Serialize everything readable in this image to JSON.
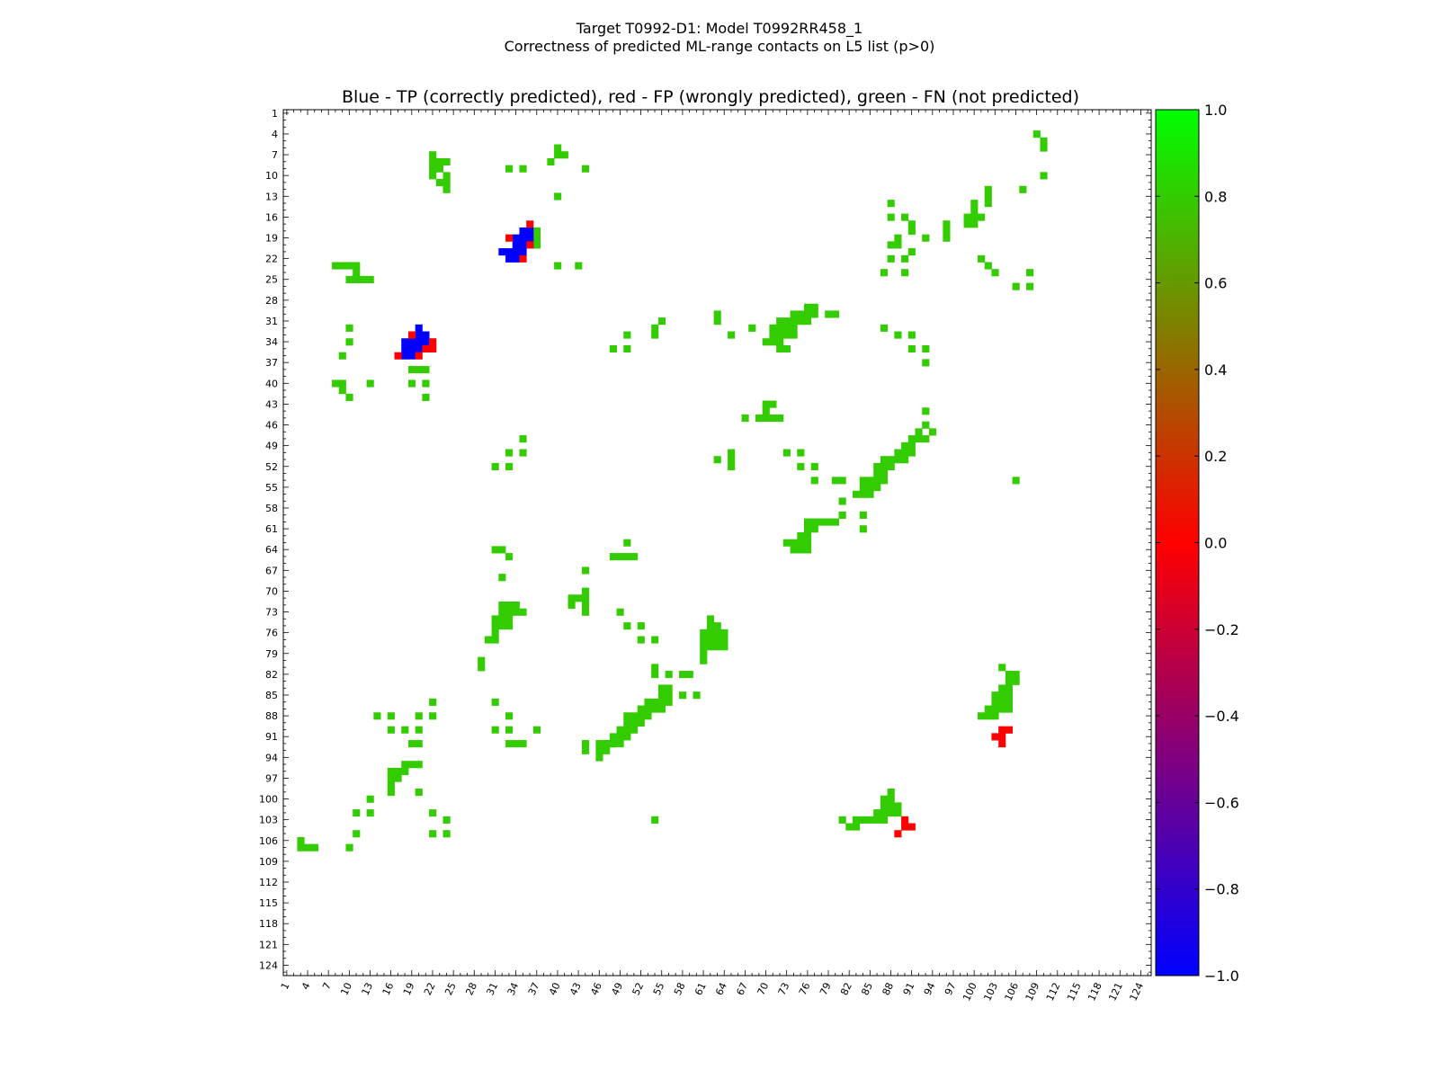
{
  "figure": {
    "title_line1": "Target T0992-D1: Model T0992RR458_1",
    "title_line2": "Correctness of predicted ML-range contacts on L5 list (p>0)"
  },
  "chart_data": {
    "type": "heatmap",
    "title": "Blue - TP (correctly predicted), red - FP (wrongly predicted), green - FN (not predicted)",
    "xlabel": "",
    "ylabel": "",
    "x_range": [
      1,
      125
    ],
    "y_range": [
      1,
      125
    ],
    "y_inverted": true,
    "tick_labels": [
      1,
      4,
      7,
      10,
      13,
      16,
      19,
      22,
      25,
      28,
      31,
      34,
      37,
      40,
      43,
      46,
      49,
      52,
      55,
      58,
      61,
      64,
      67,
      70,
      73,
      76,
      79,
      82,
      85,
      88,
      91,
      94,
      97,
      100,
      103,
      106,
      109,
      112,
      115,
      118,
      121,
      124
    ],
    "grid": false,
    "colorbar": {
      "range": [
        -1.0,
        1.0
      ],
      "ticks": [
        "1.0",
        "0.8",
        "0.6",
        "0.4",
        "0.2",
        "0.0",
        "−0.2",
        "−0.4",
        "−0.6",
        "−0.8",
        "−1.0"
      ],
      "colors": [
        "#0000ff",
        "#ff0000",
        "#00ff00"
      ],
      "position": "right"
    },
    "cell_classes": {
      "FN": {
        "value": 0.8,
        "color": "#33cc00"
      },
      "TP": {
        "value": -1.0,
        "color": "#0000ff"
      },
      "FP": {
        "value": 0.0,
        "color": "#ff0000"
      }
    },
    "FN_runs": [
      [
        4,
        109,
        109
      ],
      [
        5,
        110,
        110
      ],
      [
        6,
        110,
        110
      ],
      [
        6,
        40,
        40
      ],
      [
        7,
        22,
        22
      ],
      [
        7,
        40,
        41
      ],
      [
        8,
        22,
        22
      ],
      [
        8,
        23,
        24
      ],
      [
        8,
        39,
        39
      ],
      [
        9,
        22,
        23
      ],
      [
        9,
        33,
        33
      ],
      [
        9,
        35,
        35
      ],
      [
        9,
        44,
        44
      ],
      [
        10,
        22,
        22
      ],
      [
        10,
        24,
        24
      ],
      [
        10,
        110,
        110
      ],
      [
        11,
        23,
        24
      ],
      [
        12,
        24,
        24
      ],
      [
        12,
        102,
        102
      ],
      [
        12,
        107,
        107
      ],
      [
        13,
        40,
        40
      ],
      [
        13,
        102,
        102
      ],
      [
        14,
        88,
        88
      ],
      [
        14,
        100,
        100
      ],
      [
        14,
        102,
        102
      ],
      [
        15,
        100,
        100
      ],
      [
        16,
        88,
        88
      ],
      [
        16,
        90,
        90
      ],
      [
        16,
        99,
        101
      ],
      [
        17,
        91,
        91
      ],
      [
        17,
        96,
        96
      ],
      [
        17,
        99,
        100
      ],
      [
        18,
        37,
        37
      ],
      [
        18,
        91,
        91
      ],
      [
        18,
        96,
        96
      ],
      [
        19,
        37,
        37
      ],
      [
        19,
        89,
        89
      ],
      [
        19,
        93,
        93
      ],
      [
        19,
        96,
        96
      ],
      [
        20,
        37,
        37
      ],
      [
        20,
        88,
        89
      ],
      [
        21,
        91,
        91
      ],
      [
        22,
        88,
        88
      ],
      [
        22,
        90,
        90
      ],
      [
        22,
        101,
        101
      ],
      [
        23,
        8,
        8
      ],
      [
        23,
        9,
        11
      ],
      [
        23,
        40,
        40
      ],
      [
        23,
        43,
        43
      ],
      [
        23,
        102,
        102
      ],
      [
        24,
        11,
        11
      ],
      [
        24,
        87,
        87
      ],
      [
        24,
        90,
        90
      ],
      [
        24,
        103,
        103
      ],
      [
        24,
        108,
        108
      ],
      [
        25,
        10,
        11
      ],
      [
        25,
        12,
        13
      ],
      [
        26,
        106,
        106
      ],
      [
        26,
        108,
        108
      ],
      [
        29,
        76,
        77
      ],
      [
        30,
        63,
        63
      ],
      [
        30,
        74,
        77
      ],
      [
        30,
        79,
        80
      ],
      [
        31,
        55,
        55
      ],
      [
        31,
        63,
        63
      ],
      [
        31,
        72,
        75
      ],
      [
        31,
        76,
        76
      ],
      [
        32,
        10,
        10
      ],
      [
        32,
        54,
        54
      ],
      [
        32,
        68,
        68
      ],
      [
        32,
        71,
        74
      ],
      [
        32,
        87,
        87
      ],
      [
        33,
        50,
        50
      ],
      [
        33,
        54,
        54
      ],
      [
        33,
        65,
        65
      ],
      [
        33,
        71,
        74
      ],
      [
        33,
        89,
        89
      ],
      [
        33,
        91,
        91
      ],
      [
        34,
        10,
        10
      ],
      [
        34,
        70,
        72
      ],
      [
        35,
        48,
        48
      ],
      [
        35,
        50,
        50
      ],
      [
        35,
        72,
        73
      ],
      [
        35,
        91,
        91
      ],
      [
        35,
        93,
        93
      ],
      [
        36,
        9,
        9
      ],
      [
        37,
        93,
        93
      ],
      [
        38,
        19,
        21
      ],
      [
        40,
        8,
        9
      ],
      [
        40,
        13,
        13
      ],
      [
        40,
        19,
        19
      ],
      [
        40,
        21,
        21
      ],
      [
        41,
        9,
        9
      ],
      [
        42,
        10,
        10
      ],
      [
        42,
        21,
        21
      ],
      [
        43,
        70,
        71
      ],
      [
        44,
        70,
        70
      ],
      [
        44,
        93,
        93
      ],
      [
        45,
        69,
        72
      ],
      [
        45,
        67,
        67
      ],
      [
        46,
        93,
        93
      ],
      [
        47,
        92,
        92
      ],
      [
        47,
        94,
        94
      ],
      [
        48,
        35,
        35
      ],
      [
        48,
        91,
        93
      ],
      [
        49,
        90,
        91
      ],
      [
        50,
        33,
        33
      ],
      [
        50,
        35,
        35
      ],
      [
        50,
        65,
        65
      ],
      [
        50,
        73,
        73
      ],
      [
        50,
        75,
        75
      ],
      [
        50,
        89,
        91
      ],
      [
        51,
        63,
        63
      ],
      [
        51,
        65,
        65
      ],
      [
        51,
        87,
        90
      ],
      [
        52,
        31,
        31
      ],
      [
        52,
        33,
        33
      ],
      [
        52,
        65,
        65
      ],
      [
        52,
        75,
        75
      ],
      [
        52,
        77,
        77
      ],
      [
        52,
        86,
        88
      ],
      [
        53,
        86,
        87
      ],
      [
        54,
        77,
        77
      ],
      [
        54,
        80,
        81
      ],
      [
        54,
        84,
        87
      ],
      [
        54,
        106,
        106
      ],
      [
        55,
        84,
        86
      ],
      [
        56,
        83,
        85
      ],
      [
        57,
        81,
        81
      ],
      [
        59,
        81,
        81
      ],
      [
        59,
        84,
        84
      ],
      [
        60,
        76,
        80
      ],
      [
        61,
        76,
        77
      ],
      [
        61,
        84,
        84
      ],
      [
        62,
        75,
        76
      ],
      [
        63,
        73,
        76
      ],
      [
        63,
        50,
        50
      ],
      [
        64,
        31,
        32
      ],
      [
        64,
        74,
        76
      ],
      [
        65,
        48,
        51
      ],
      [
        65,
        33,
        33
      ],
      [
        67,
        44,
        44
      ],
      [
        68,
        32,
        32
      ],
      [
        70,
        44,
        44
      ],
      [
        71,
        42,
        44
      ],
      [
        72,
        42,
        42
      ],
      [
        72,
        44,
        44
      ],
      [
        72,
        32,
        33
      ],
      [
        72,
        34,
        34
      ],
      [
        73,
        32,
        35
      ],
      [
        73,
        44,
        44
      ],
      [
        73,
        49,
        49
      ],
      [
        74,
        31,
        33
      ],
      [
        74,
        62,
        62
      ],
      [
        75,
        31,
        33
      ],
      [
        75,
        50,
        50
      ],
      [
        75,
        52,
        52
      ],
      [
        75,
        62,
        63
      ],
      [
        76,
        31,
        31
      ],
      [
        76,
        61,
        64
      ],
      [
        77,
        30,
        31
      ],
      [
        77,
        52,
        52
      ],
      [
        77,
        54,
        54
      ],
      [
        77,
        61,
        64
      ],
      [
        78,
        61,
        64
      ],
      [
        79,
        61,
        61
      ],
      [
        80,
        29,
        29
      ],
      [
        80,
        61,
        61
      ],
      [
        81,
        29,
        29
      ],
      [
        81,
        54,
        54
      ],
      [
        81,
        104,
        104
      ],
      [
        82,
        54,
        54
      ],
      [
        82,
        56,
        56
      ],
      [
        82,
        58,
        59
      ],
      [
        82,
        105,
        106
      ],
      [
        83,
        105,
        106
      ],
      [
        84,
        55,
        56
      ],
      [
        84,
        104,
        105
      ],
      [
        85,
        55,
        56
      ],
      [
        85,
        58,
        58
      ],
      [
        85,
        60,
        60
      ],
      [
        85,
        103,
        105
      ],
      [
        86,
        22,
        22
      ],
      [
        86,
        31,
        31
      ],
      [
        86,
        53,
        56
      ],
      [
        86,
        103,
        105
      ],
      [
        87,
        52,
        55
      ],
      [
        87,
        102,
        105
      ],
      [
        88,
        14,
        14
      ],
      [
        88,
        16,
        16
      ],
      [
        88,
        20,
        20
      ],
      [
        88,
        22,
        22
      ],
      [
        88,
        33,
        33
      ],
      [
        88,
        50,
        53
      ],
      [
        88,
        101,
        103
      ],
      [
        89,
        50,
        52
      ],
      [
        90,
        16,
        16
      ],
      [
        90,
        18,
        18
      ],
      [
        90,
        20,
        20
      ],
      [
        90,
        31,
        31
      ],
      [
        90,
        33,
        33
      ],
      [
        90,
        37,
        37
      ],
      [
        90,
        49,
        51
      ],
      [
        91,
        48,
        50
      ],
      [
        92,
        19,
        20
      ],
      [
        92,
        33,
        35
      ],
      [
        92,
        44,
        44
      ],
      [
        92,
        46,
        49
      ],
      [
        92,
        47,
        48
      ],
      [
        93,
        44,
        44
      ],
      [
        93,
        46,
        47
      ],
      [
        94,
        46,
        46
      ],
      [
        95,
        18,
        20
      ],
      [
        96,
        16,
        18
      ],
      [
        97,
        16,
        17
      ],
      [
        98,
        16,
        16
      ],
      [
        99,
        16,
        16
      ],
      [
        99,
        20,
        20
      ],
      [
        99,
        88,
        88
      ],
      [
        100,
        13,
        13
      ],
      [
        100,
        87,
        88
      ],
      [
        101,
        87,
        89
      ],
      [
        102,
        11,
        11
      ],
      [
        102,
        13,
        13
      ],
      [
        102,
        86,
        89
      ],
      [
        102,
        22,
        22
      ],
      [
        103,
        24,
        24
      ],
      [
        103,
        54,
        54
      ],
      [
        103,
        81,
        81
      ],
      [
        103,
        83,
        87
      ],
      [
        104,
        82,
        83
      ],
      [
        105,
        11,
        11
      ],
      [
        105,
        22,
        22
      ],
      [
        105,
        24,
        24
      ],
      [
        106,
        3,
        3
      ],
      [
        107,
        3,
        5
      ],
      [
        107,
        10,
        10
      ]
    ],
    "TP_runs": [
      [
        18,
        35,
        36
      ],
      [
        19,
        34,
        36
      ],
      [
        20,
        34,
        36
      ],
      [
        21,
        32,
        35
      ],
      [
        22,
        33,
        34
      ],
      [
        32,
        20,
        20
      ],
      [
        33,
        19,
        21
      ],
      [
        34,
        18,
        21
      ],
      [
        35,
        18,
        20
      ],
      [
        36,
        18,
        19
      ]
    ],
    "FP_runs": [
      [
        17,
        36,
        36
      ],
      [
        19,
        33,
        33
      ],
      [
        20,
        36,
        36
      ],
      [
        22,
        35,
        35
      ],
      [
        33,
        19,
        19
      ],
      [
        34,
        22,
        22
      ],
      [
        35,
        21,
        22
      ],
      [
        36,
        17,
        17
      ],
      [
        36,
        20,
        20
      ],
      [
        90,
        104,
        105
      ],
      [
        91,
        103,
        103
      ],
      [
        91,
        104,
        104
      ],
      [
        92,
        104,
        104
      ],
      [
        103,
        90,
        90
      ],
      [
        104,
        90,
        91
      ],
      [
        105,
        89,
        89
      ]
    ]
  }
}
